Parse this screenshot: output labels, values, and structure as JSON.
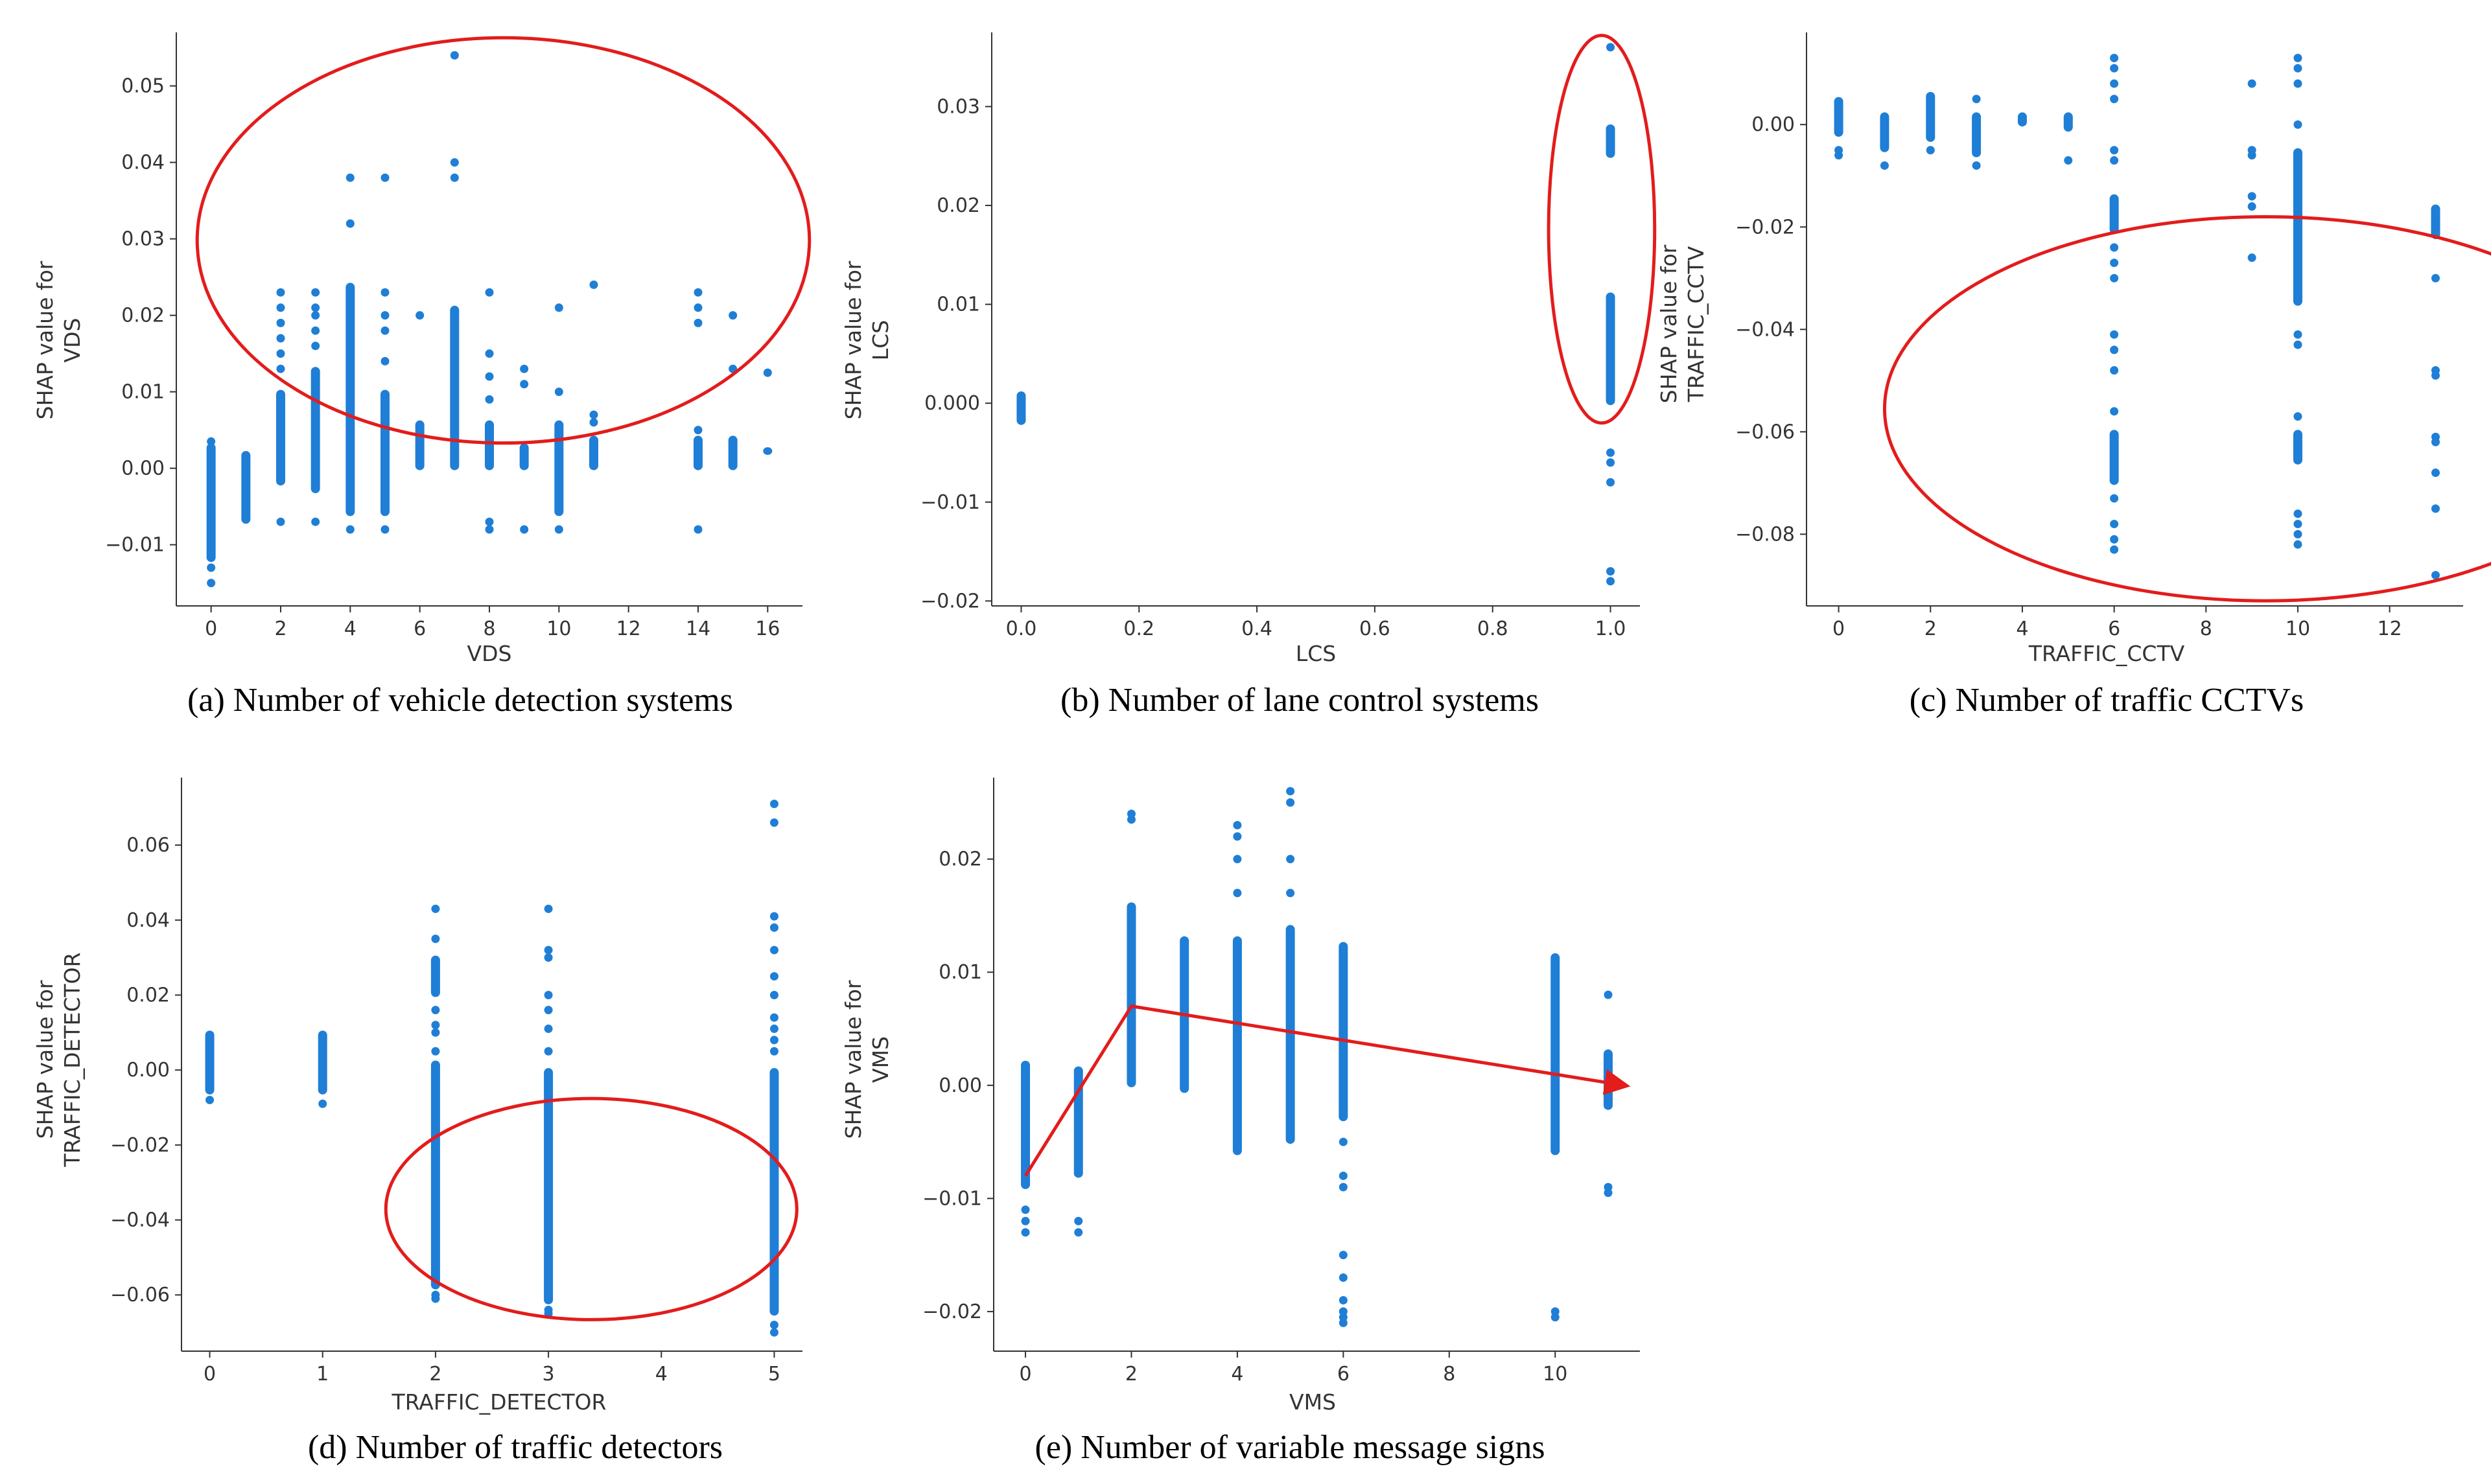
{
  "colors": {
    "points": "#1f7ed6",
    "annotation": "#e31c1c",
    "axis": "#333333"
  },
  "chart_data": [
    {
      "id": "a",
      "type": "scatter",
      "caption": "(a) Number of vehicle detection systems",
      "xlabel": "VDS",
      "ylabel": [
        "SHAP value for",
        "VDS"
      ],
      "xlim": [
        -1,
        17
      ],
      "ylim": [
        -0.018,
        0.057
      ],
      "xticks": [
        0,
        2,
        4,
        6,
        8,
        10,
        12,
        14,
        16
      ],
      "xtick_labels": [
        "0",
        "2",
        "4",
        "6",
        "8",
        "10",
        "12",
        "14",
        "16"
      ],
      "yticks": [
        -0.01,
        0.0,
        0.01,
        0.02,
        0.03,
        0.04,
        0.05
      ],
      "ytick_labels": [
        "−0.01",
        "0.00",
        "0.01",
        "0.02",
        "0.03",
        "0.04",
        "0.05"
      ],
      "columns": [
        {
          "x": 0,
          "ranges": [
            [
              -0.012,
              0.003
            ]
          ],
          "points": [
            -0.015,
            -0.013,
            0.0035
          ]
        },
        {
          "x": 1,
          "ranges": [
            [
              -0.007,
              0.002
            ]
          ],
          "points": []
        },
        {
          "x": 2,
          "ranges": [
            [
              -0.002,
              0.01
            ]
          ],
          "points": [
            -0.007,
            0.013,
            0.015,
            0.017,
            0.019,
            0.021,
            0.023
          ]
        },
        {
          "x": 3,
          "ranges": [
            [
              -0.003,
              0.013
            ]
          ],
          "points": [
            -0.007,
            0.016,
            0.018,
            0.02,
            0.021,
            0.023
          ]
        },
        {
          "x": 4,
          "ranges": [
            [
              -0.006,
              0.024
            ]
          ],
          "points": [
            -0.008,
            0.032,
            0.038
          ]
        },
        {
          "x": 5,
          "ranges": [
            [
              -0.006,
              0.01
            ]
          ],
          "points": [
            -0.008,
            0.014,
            0.018,
            0.02,
            0.023,
            0.038
          ]
        },
        {
          "x": 6,
          "ranges": [
            [
              0.0,
              0.006
            ]
          ],
          "points": [
            0.02
          ]
        },
        {
          "x": 7,
          "ranges": [
            [
              0.0,
              0.021
            ]
          ],
          "points": [
            0.038,
            0.04,
            0.054
          ]
        },
        {
          "x": 8,
          "ranges": [
            [
              0.0,
              0.006
            ]
          ],
          "points": [
            -0.008,
            -0.007,
            0.009,
            0.012,
            0.015,
            0.023
          ]
        },
        {
          "x": 9,
          "ranges": [
            [
              0.0,
              0.003
            ]
          ],
          "points": [
            -0.008,
            0.011,
            0.013
          ]
        },
        {
          "x": 10,
          "ranges": [
            [
              -0.006,
              0.006
            ]
          ],
          "points": [
            -0.008,
            0.01,
            0.021
          ]
        },
        {
          "x": 11,
          "ranges": [
            [
              0.0,
              0.004
            ]
          ],
          "points": [
            0.006,
            0.007,
            0.024
          ]
        },
        {
          "x": 14,
          "ranges": [
            [
              0.0,
              0.004
            ]
          ],
          "points": [
            -0.008,
            0.005,
            0.019,
            0.021,
            0.023
          ]
        },
        {
          "x": 15,
          "ranges": [
            [
              0.0,
              0.004
            ]
          ],
          "points": [
            0.013,
            0.02
          ]
        },
        {
          "x": 16,
          "ranges": [
            [
              0.002,
              0.0025
            ]
          ],
          "points": [
            0.0125
          ]
        }
      ],
      "annotations": [
        {
          "shape": "ellipse",
          "cx": 8.4,
          "cy": 0.0298,
          "rx": 8.8,
          "ry": 0.0265
        }
      ]
    },
    {
      "id": "b",
      "type": "scatter",
      "caption": "(b) Number of lane control systems",
      "xlabel": "LCS",
      "ylabel": [
        "SHAP value for",
        "LCS"
      ],
      "xlim": [
        -0.05,
        1.05
      ],
      "ylim": [
        -0.0205,
        0.0375
      ],
      "xticks": [
        0.0,
        0.2,
        0.4,
        0.6,
        0.8,
        1.0
      ],
      "xtick_labels": [
        "0.0",
        "0.2",
        "0.4",
        "0.6",
        "0.8",
        "1.0"
      ],
      "yticks": [
        -0.02,
        -0.01,
        0.0,
        0.01,
        0.02,
        0.03
      ],
      "ytick_labels": [
        "−0.02",
        "−0.01",
        "0.000",
        "0.01",
        "0.02",
        "0.03"
      ],
      "columns": [
        {
          "x": 0,
          "ranges": [
            [
              -0.002,
              0.001
            ]
          ],
          "points": []
        },
        {
          "x": 1,
          "ranges": [
            [
              0.0,
              0.011
            ],
            [
              0.025,
              0.028
            ]
          ],
          "points": [
            -0.018,
            -0.017,
            -0.008,
            -0.006,
            -0.005,
            0.026,
            0.036
          ]
        }
      ],
      "annotations": [
        {
          "shape": "ellipse",
          "cx": 0.985,
          "cy": 0.0176,
          "rx": 0.09,
          "ry": 0.0196
        }
      ]
    },
    {
      "id": "c",
      "type": "scatter",
      "caption": "(c) Number of traffic CCTVs",
      "xlabel": "TRAFFIC_CCTV",
      "ylabel": [
        "SHAP value for",
        "TRAFFIC_CCTV"
      ],
      "xlim": [
        -0.7,
        13.6
      ],
      "ylim": [
        -0.094,
        0.018
      ],
      "xticks": [
        0,
        2,
        4,
        6,
        8,
        10,
        12
      ],
      "xtick_labels": [
        "0",
        "2",
        "4",
        "6",
        "8",
        "10",
        "12"
      ],
      "yticks": [
        -0.08,
        -0.06,
        -0.04,
        -0.02,
        0.0
      ],
      "ytick_labels": [
        "−0.08",
        "−0.06",
        "−0.04",
        "−0.02",
        "0.00"
      ],
      "columns": [
        {
          "x": 0,
          "ranges": [
            [
              -0.002,
              0.005
            ]
          ],
          "points": [
            -0.006,
            -0.005
          ]
        },
        {
          "x": 1,
          "ranges": [
            [
              -0.005,
              0.002
            ]
          ],
          "points": [
            -0.008
          ]
        },
        {
          "x": 2,
          "ranges": [
            [
              -0.003,
              0.006
            ]
          ],
          "points": [
            -0.005
          ]
        },
        {
          "x": 3,
          "ranges": [
            [
              -0.006,
              0.002
            ]
          ],
          "points": [
            -0.008,
            0.005
          ]
        },
        {
          "x": 4,
          "ranges": [
            [
              0.0,
              0.002
            ]
          ],
          "points": []
        },
        {
          "x": 5,
          "ranges": [
            [
              -0.001,
              0.002
            ]
          ],
          "points": [
            -0.007
          ]
        },
        {
          "x": 6,
          "ranges": [
            [
              -0.021,
              -0.014
            ],
            [
              -0.07,
              -0.06
            ]
          ],
          "points": [
            -0.083,
            -0.081,
            -0.078,
            -0.073,
            -0.056,
            -0.048,
            -0.044,
            -0.041,
            -0.03,
            -0.027,
            -0.024,
            -0.007,
            -0.005,
            0.005,
            0.008,
            0.011,
            0.013
          ]
        },
        {
          "x": 9,
          "ranges": [],
          "points": [
            -0.026,
            -0.016,
            -0.014,
            -0.006,
            -0.005,
            0.008
          ]
        },
        {
          "x": 10,
          "ranges": [
            [
              -0.035,
              -0.005
            ],
            [
              -0.066,
              -0.06
            ]
          ],
          "points": [
            -0.082,
            -0.08,
            -0.078,
            -0.076,
            -0.057,
            -0.043,
            -0.041,
            0.0,
            0.008,
            0.011,
            0.013
          ]
        },
        {
          "x": 13,
          "ranges": [
            [
              -0.022,
              -0.016
            ]
          ],
          "points": [
            -0.088,
            -0.075,
            -0.068,
            -0.062,
            -0.061,
            -0.049,
            -0.048,
            -0.03
          ]
        }
      ],
      "annotations": [
        {
          "shape": "ellipse",
          "cx": 9.3,
          "cy": -0.0555,
          "rx": 8.3,
          "ry": 0.0375
        }
      ]
    },
    {
      "id": "d",
      "type": "scatter",
      "caption": "(d) Number of traffic detectors",
      "xlabel": "TRAFFIC_DETECTOR",
      "ylabel": [
        "SHAP value for",
        "TRAFFIC_DETECTOR"
      ],
      "xlim": [
        -0.25,
        5.25
      ],
      "ylim": [
        -0.075,
        0.078
      ],
      "xticks": [
        0,
        1,
        2,
        3,
        4,
        5
      ],
      "xtick_labels": [
        "0",
        "1",
        "2",
        "3",
        "4",
        "5"
      ],
      "yticks": [
        -0.06,
        -0.04,
        -0.02,
        0.0,
        0.02,
        0.04,
        0.06
      ],
      "ytick_labels": [
        "−0.06",
        "−0.04",
        "−0.02",
        "0.00",
        "0.02",
        "0.04",
        "0.06"
      ],
      "columns": [
        {
          "x": 0,
          "ranges": [
            [
              -0.006,
              0.01
            ]
          ],
          "points": [
            -0.008
          ]
        },
        {
          "x": 1,
          "ranges": [
            [
              -0.006,
              0.01
            ]
          ],
          "points": [
            -0.009
          ]
        },
        {
          "x": 2,
          "ranges": [
            [
              -0.058,
              0.002
            ],
            [
              0.02,
              0.03
            ]
          ],
          "points": [
            -0.061,
            -0.06,
            0.005,
            0.01,
            0.012,
            0.016,
            0.035,
            0.043
          ]
        },
        {
          "x": 3,
          "ranges": [
            [
              -0.062,
              0.0
            ]
          ],
          "points": [
            -0.065,
            -0.064,
            0.005,
            0.011,
            0.016,
            0.02,
            0.03,
            0.032,
            0.043
          ]
        },
        {
          "x": 5,
          "ranges": [
            [
              -0.065,
              0.0
            ]
          ],
          "points": [
            -0.07,
            -0.068,
            0.005,
            0.008,
            0.011,
            0.014,
            0.02,
            0.025,
            0.032,
            0.038,
            0.041,
            0.066,
            0.071
          ]
        }
      ],
      "annotations": [
        {
          "shape": "ellipse",
          "cx": 3.38,
          "cy": -0.0371,
          "rx": 1.82,
          "ry": 0.0295
        }
      ]
    },
    {
      "id": "e",
      "type": "scatter",
      "caption": "(e) Number of variable message signs",
      "xlabel": "VMS",
      "ylabel": [
        "SHAP value for",
        "VMS"
      ],
      "xlim": [
        -0.6,
        11.6
      ],
      "ylim": [
        -0.0235,
        0.0272
      ],
      "xticks": [
        0,
        2,
        4,
        6,
        8,
        10
      ],
      "xtick_labels": [
        "0",
        "2",
        "4",
        "6",
        "8",
        "10"
      ],
      "yticks": [
        -0.02,
        -0.01,
        0.0,
        0.01,
        0.02
      ],
      "ytick_labels": [
        "−0.02",
        "−0.01",
        "0.00",
        "0.01",
        "0.02"
      ],
      "columns": [
        {
          "x": 0,
          "ranges": [
            [
              -0.009,
              0.002
            ]
          ],
          "points": [
            -0.013,
            -0.012,
            -0.011
          ]
        },
        {
          "x": 1,
          "ranges": [
            [
              -0.008,
              0.0015
            ]
          ],
          "points": [
            -0.013,
            -0.012
          ]
        },
        {
          "x": 2,
          "ranges": [
            [
              0.0,
              0.016
            ]
          ],
          "points": [
            0.0235,
            0.024
          ]
        },
        {
          "x": 3,
          "ranges": [
            [
              -0.0005,
              0.013
            ]
          ],
          "points": []
        },
        {
          "x": 4,
          "ranges": [
            [
              -0.006,
              0.013
            ]
          ],
          "points": [
            0.017,
            0.02,
            0.022,
            0.023
          ]
        },
        {
          "x": 5,
          "ranges": [
            [
              -0.005,
              0.014
            ]
          ],
          "points": [
            0.017,
            0.02,
            0.025,
            0.026
          ]
        },
        {
          "x": 6,
          "ranges": [
            [
              -0.003,
              0.0125
            ]
          ],
          "points": [
            -0.021,
            -0.0205,
            -0.02,
            -0.019,
            -0.017,
            -0.015,
            -0.009,
            -0.008,
            -0.005
          ]
        },
        {
          "x": 10,
          "ranges": [
            [
              -0.006,
              0.0115
            ]
          ],
          "points": [
            -0.0205,
            -0.02
          ]
        },
        {
          "x": 11,
          "ranges": [
            [
              -0.002,
              0.003
            ]
          ],
          "points": [
            -0.0095,
            -0.009,
            0.008
          ]
        }
      ],
      "annotations": [
        {
          "shape": "polyline",
          "points": [
            [
              0.0,
              -0.008
            ],
            [
              2.0,
              0.007
            ],
            [
              11.3,
              0.0
            ]
          ],
          "arrow": true
        }
      ]
    }
  ]
}
